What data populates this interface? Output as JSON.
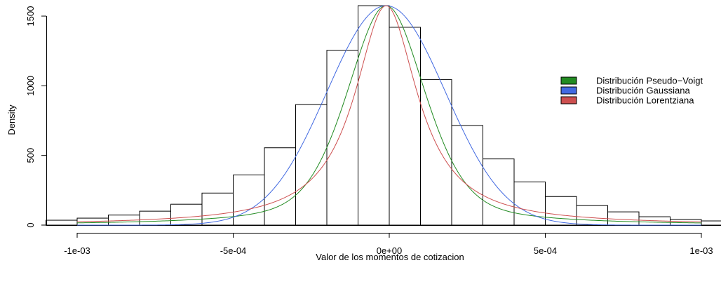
{
  "chart_data": {
    "type": "histogram",
    "xlabel": "Valor de los momentos de cotizacion",
    "ylabel": "Density",
    "xlim": [
      -0.00105,
      0.00105
    ],
    "ylim": [
      0,
      1600
    ],
    "x_ticks": [
      {
        "value": -0.001,
        "label": "-1e-03"
      },
      {
        "value": -0.0005,
        "label": "-5e-04"
      },
      {
        "value": 0,
        "label": "0e+00"
      },
      {
        "value": 0.0005,
        "label": "5e-04"
      },
      {
        "value": 0.001,
        "label": "1e-03"
      }
    ],
    "y_ticks": [
      {
        "value": 0,
        "label": "0"
      },
      {
        "value": 500,
        "label": "500"
      },
      {
        "value": 1000,
        "label": "1000"
      },
      {
        "value": 1500,
        "label": "1500"
      }
    ],
    "bins": [
      {
        "x0": -0.0011,
        "x1": -0.001,
        "density": 35
      },
      {
        "x0": -0.001,
        "x1": -0.0009,
        "density": 50
      },
      {
        "x0": -0.0009,
        "x1": -0.0008,
        "density": 72
      },
      {
        "x0": -0.0008,
        "x1": -0.0007,
        "density": 100
      },
      {
        "x0": -0.0007,
        "x1": -0.0006,
        "density": 150
      },
      {
        "x0": -0.0006,
        "x1": -0.0005,
        "density": 230
      },
      {
        "x0": -0.0005,
        "x1": -0.0004,
        "density": 360
      },
      {
        "x0": -0.0004,
        "x1": -0.0003,
        "density": 555
      },
      {
        "x0": -0.0003,
        "x1": -0.0002,
        "density": 865
      },
      {
        "x0": -0.0002,
        "x1": -0.0001,
        "density": 1255
      },
      {
        "x0": -0.0001,
        "x1": 0.0,
        "density": 1575
      },
      {
        "x0": 0.0,
        "x1": 0.0001,
        "density": 1420
      },
      {
        "x0": 0.0001,
        "x1": 0.0002,
        "density": 1045
      },
      {
        "x0": 0.0002,
        "x1": 0.0003,
        "density": 715
      },
      {
        "x0": 0.0003,
        "x1": 0.0004,
        "density": 475
      },
      {
        "x0": 0.0004,
        "x1": 0.0005,
        "density": 310
      },
      {
        "x0": 0.0005,
        "x1": 0.0006,
        "density": 205
      },
      {
        "x0": 0.0006,
        "x1": 0.0007,
        "density": 140
      },
      {
        "x0": 0.0007,
        "x1": 0.0008,
        "density": 95
      },
      {
        "x0": 0.0008,
        "x1": 0.0009,
        "density": 60
      },
      {
        "x0": 0.0009,
        "x1": 0.001,
        "density": 40
      },
      {
        "x0": 0.001,
        "x1": 0.0011,
        "density": 30
      }
    ],
    "series": [
      {
        "name": "Distribución Pseudo−Voigt",
        "color": "#228B22",
        "model": "pseudo-voigt",
        "peak": 1575,
        "center": -1e-05,
        "fwhm": 0.0003,
        "eta": 0.45
      },
      {
        "name": "Distribución Gaussiana",
        "color": "#4169E1",
        "model": "gaussian",
        "peak": 1575,
        "center": -1e-05,
        "sigma": 0.00019
      },
      {
        "name": "Distribución Lorentziana",
        "color": "#CD4F4F",
        "model": "lorentzian",
        "peak": 1575,
        "center": -1e-05,
        "gamma": 0.000123
      }
    ],
    "legend_position": "right",
    "grid": false
  }
}
